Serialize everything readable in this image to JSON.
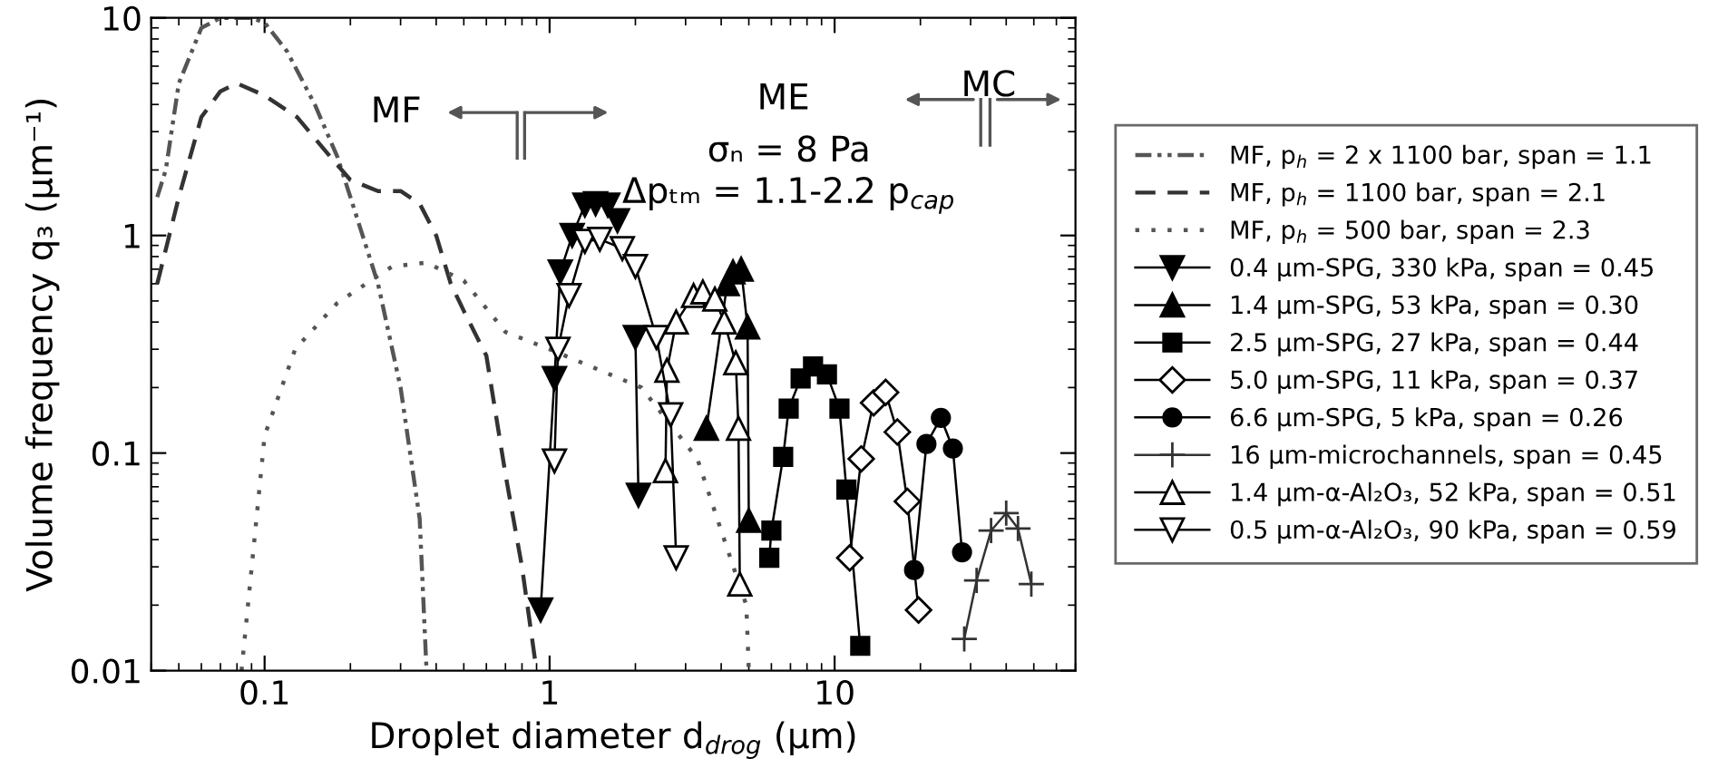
{
  "chart_data": {
    "type": "line",
    "xlabel": "Droplet diameter d$_{drog}$ (µm)",
    "ylabel": "Volume frequency q₃ (µm⁻¹)",
    "log": "xy",
    "xlim": [
      0.04,
      70
    ],
    "xticks": [
      0.1,
      1,
      10
    ],
    "ylim": [
      0.01,
      10
    ],
    "yticks": [
      0.01,
      0.1,
      1,
      10
    ],
    "grid": false,
    "legend": "right",
    "annotations": [
      "MF",
      "ME",
      "MC",
      "σₙ = 8 Pa",
      "Δpₜₘ = 1.1-2.2 p$_{cap}$"
    ],
    "series": [
      {
        "name": "MF, p$_{h}$ = 2 x 1100 bar, span = 1.1",
        "color": "#555555",
        "line_style": "dashdot",
        "marker": "none",
        "x": [
          0.042,
          0.045,
          0.05,
          0.06,
          0.07,
          0.08,
          0.09,
          0.1,
          0.12,
          0.15,
          0.18,
          0.2,
          0.25,
          0.3,
          0.35,
          0.37
        ],
        "values": [
          1.5,
          2,
          5,
          9,
          10,
          10,
          10,
          9.5,
          7,
          4,
          2.3,
          1.5,
          0.6,
          0.2,
          0.05,
          0.01
        ]
      },
      {
        "name": "MF, p$_{h}$ = 1100 bar, span = 2.1",
        "color": "#333333",
        "line_style": "dashed",
        "marker": "none",
        "x": [
          0.042,
          0.05,
          0.06,
          0.07,
          0.08,
          0.1,
          0.13,
          0.17,
          0.2,
          0.25,
          0.3,
          0.35,
          0.4,
          0.45,
          0.5,
          0.6,
          0.7,
          0.8,
          0.9
        ],
        "values": [
          0.6,
          1.5,
          3.5,
          4.6,
          5,
          4.4,
          3.5,
          2.3,
          1.8,
          1.6,
          1.6,
          1.4,
          1.0,
          0.6,
          0.45,
          0.28,
          0.08,
          0.03,
          0.01
        ]
      },
      {
        "name": "MF, p$_{h}$ = 500 bar, span = 2.3",
        "color": "#555555",
        "line_style": "dotted",
        "marker": "none",
        "x": [
          0.083,
          0.1,
          0.128,
          0.18,
          0.28,
          0.37,
          0.5,
          0.7,
          1.0,
          2.1,
          3.3,
          4.0,
          4.9,
          5.0
        ],
        "values": [
          0.01,
          0.12,
          0.3,
          0.49,
          0.72,
          0.75,
          0.62,
          0.36,
          0.3,
          0.2,
          0.094,
          0.044,
          0.02,
          0.01
        ]
      },
      {
        "name": "0.4 µm-SPG, 330 kPa, span = 0.45",
        "color": "#000000",
        "line_style": "solid",
        "marker": "triangle_down",
        "x": [
          0.93,
          1.04,
          1.09,
          1.2,
          1.33,
          1.45,
          1.6,
          1.73,
          1.85,
          2.0,
          2.05
        ],
        "values": [
          0.019,
          0.22,
          0.68,
          1.0,
          1.38,
          1.4,
          1.38,
          1.17,
          null,
          0.34,
          0.064
        ]
      },
      {
        "name": "1.4 µm-SPG, 53 kPa, span = 0.30",
        "color": "#000000",
        "line_style": "solid",
        "marker": "triangle",
        "x": [
          3.55,
          4.2,
          4.4,
          4.7,
          4.95,
          5.0
        ],
        "values": [
          0.13,
          0.6,
          0.68,
          0.7,
          0.38,
          0.049
        ]
      },
      {
        "name": "2.5 µm-SPG, 27 kPa, span = 0.44",
        "color": "#000000",
        "line_style": "solid",
        "marker": "square",
        "x": [
          5.9,
          6.0,
          6.6,
          6.9,
          7.6,
          8.4,
          9.4,
          10.4,
          11.0,
          12.3
        ],
        "values": [
          0.033,
          0.044,
          0.096,
          0.16,
          0.22,
          0.25,
          0.23,
          0.16,
          0.068,
          0.013
        ]
      },
      {
        "name": "5.0 µm-SPG, 11 kPa, span = 0.37",
        "color": "#000000",
        "line_style": "solid",
        "marker": "diamond_open",
        "x": [
          11.3,
          12.4,
          13.7,
          15.1,
          16.6,
          18,
          19.7
        ],
        "values": [
          0.033,
          0.094,
          0.17,
          0.19,
          0.125,
          0.06,
          0.019
        ]
      },
      {
        "name": "6.6 µm-SPG, 5 kPa, span = 0.26",
        "color": "#000000",
        "line_style": "solid",
        "marker": "circle",
        "x": [
          19,
          21,
          23.6,
          26,
          28
        ],
        "values": [
          0.029,
          0.11,
          0.145,
          0.105,
          0.035
        ]
      },
      {
        "name": "16 µm-microchannels, span = 0.45",
        "color": "#333333",
        "line_style": "solid",
        "marker": "cross",
        "x": [
          28.5,
          31.5,
          35.4,
          40,
          44,
          49
        ],
        "values": [
          0.014,
          0.026,
          0.044,
          0.053,
          0.045,
          0.025
        ]
      },
      {
        "name": "1.4 µm-α-Al₂O₃, 52 kPa, span = 0.51",
        "color": "#000000",
        "line_style": "solid",
        "marker": "triangle_open",
        "x": [
          2.55,
          2.58,
          2.78,
          3.2,
          3.45,
          3.8,
          4.1,
          4.5,
          4.6,
          4.65
        ],
        "values": [
          0.083,
          0.24,
          0.4,
          0.53,
          0.55,
          0.51,
          0.4,
          0.26,
          0.13,
          0.025
        ]
      },
      {
        "name": "0.5 µm-α-Al₂O₃, 90 kPa, span = 0.59",
        "color": "#000000",
        "line_style": "solid",
        "marker": "triangle_down_open",
        "x": [
          1.04,
          1.07,
          1.17,
          1.33,
          1.5,
          1.8,
          2.0,
          2.37,
          2.66,
          2.78
        ],
        "values": [
          0.092,
          0.3,
          0.53,
          0.94,
          0.96,
          0.87,
          0.72,
          0.34,
          0.15,
          0.033
        ]
      }
    ]
  }
}
